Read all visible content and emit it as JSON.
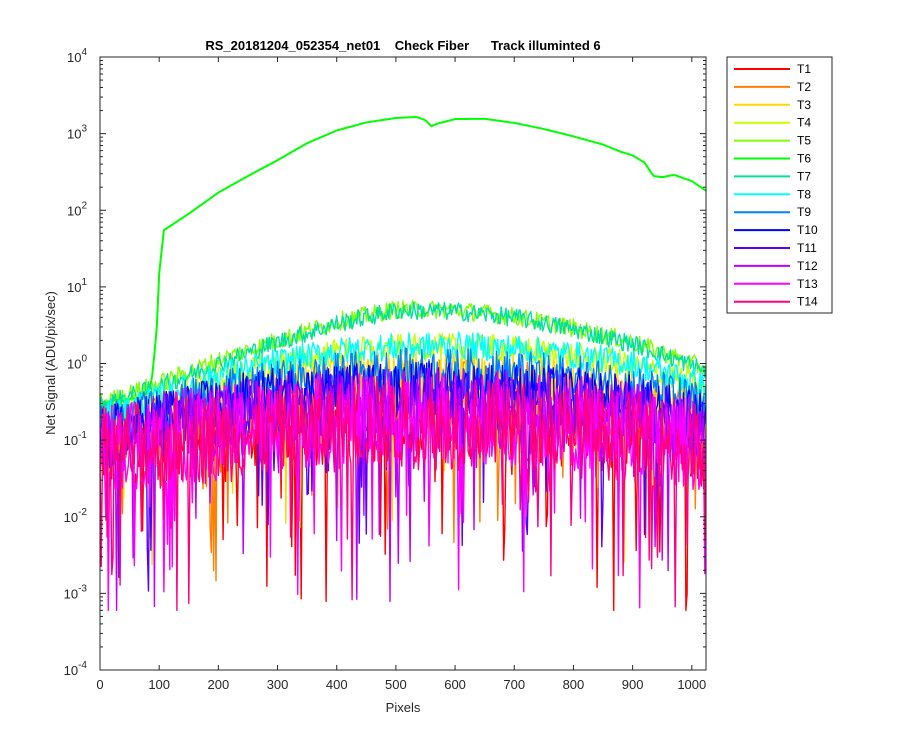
{
  "chart_data": {
    "type": "line",
    "title": "RS_20181204_052354_net01    Check Fiber      Track illuminted 6",
    "xlabel": "Pixels",
    "ylabel": "Net Signal (ADU/pix/sec)",
    "xlim": [
      0,
      1024
    ],
    "ylim": [
      0.0001,
      10000
    ],
    "yscale": "log",
    "x_ticks": [
      0,
      100,
      200,
      300,
      400,
      500,
      600,
      700,
      800,
      900,
      1000
    ],
    "y_ticks": [
      {
        "value": 0.0001,
        "base": "10",
        "exp": "-4"
      },
      {
        "value": 0.001,
        "base": "10",
        "exp": "-3"
      },
      {
        "value": 0.01,
        "base": "10",
        "exp": "-2"
      },
      {
        "value": 0.1,
        "base": "10",
        "exp": "-1"
      },
      {
        "value": 1,
        "base": "10",
        "exp": "0"
      },
      {
        "value": 10,
        "base": "10",
        "exp": "1"
      },
      {
        "value": 100,
        "base": "10",
        "exp": "2"
      },
      {
        "value": 1000,
        "base": "10",
        "exp": "3"
      },
      {
        "value": 10000,
        "base": "10",
        "exp": "4"
      }
    ],
    "grid": false,
    "legend_position": "outside-right-top",
    "series": [
      {
        "name": "T1",
        "color": "#ff0000",
        "points": [
          [
            0,
            0.08
          ],
          [
            100,
            0.1
          ],
          [
            200,
            0.13
          ],
          [
            300,
            0.15
          ],
          [
            400,
            0.17
          ],
          [
            500,
            0.18
          ],
          [
            600,
            0.18
          ],
          [
            700,
            0.17
          ],
          [
            800,
            0.15
          ],
          [
            900,
            0.12
          ],
          [
            1000,
            0.09
          ],
          [
            1024,
            0.08
          ]
        ]
      },
      {
        "name": "T2",
        "color": "#ff7f00",
        "points": [
          [
            0,
            0.12
          ],
          [
            100,
            0.17
          ],
          [
            200,
            0.23
          ],
          [
            300,
            0.3
          ],
          [
            400,
            0.38
          ],
          [
            500,
            0.42
          ],
          [
            600,
            0.42
          ],
          [
            700,
            0.4
          ],
          [
            800,
            0.33
          ],
          [
            900,
            0.25
          ],
          [
            1000,
            0.16
          ],
          [
            1024,
            0.14
          ]
        ]
      },
      {
        "name": "T3",
        "color": "#ffd700",
        "points": [
          [
            0,
            0.13
          ],
          [
            100,
            0.2
          ],
          [
            200,
            0.32
          ],
          [
            300,
            0.45
          ],
          [
            400,
            0.55
          ],
          [
            500,
            0.6
          ],
          [
            600,
            0.6
          ],
          [
            700,
            0.58
          ],
          [
            800,
            0.5
          ],
          [
            900,
            0.38
          ],
          [
            1000,
            0.22
          ],
          [
            1024,
            0.19
          ]
        ]
      },
      {
        "name": "T4",
        "color": "#c8ff00",
        "points": [
          [
            0,
            0.2
          ],
          [
            100,
            0.35
          ],
          [
            200,
            0.65
          ],
          [
            300,
            1.0
          ],
          [
            400,
            1.4
          ],
          [
            500,
            1.6
          ],
          [
            600,
            1.65
          ],
          [
            700,
            1.55
          ],
          [
            800,
            1.25
          ],
          [
            900,
            0.95
          ],
          [
            1000,
            0.55
          ],
          [
            1024,
            0.45
          ]
        ]
      },
      {
        "name": "T5",
        "color": "#80ff00",
        "points": [
          [
            0,
            0.3
          ],
          [
            100,
            0.55
          ],
          [
            200,
            1.1
          ],
          [
            300,
            2.0
          ],
          [
            400,
            3.5
          ],
          [
            500,
            5.1
          ],
          [
            600,
            5.0
          ],
          [
            700,
            4.1
          ],
          [
            800,
            2.9
          ],
          [
            900,
            1.9
          ],
          [
            1000,
            1.0
          ],
          [
            1024,
            0.85
          ]
        ]
      },
      {
        "name": "T6",
        "color": "#00ff00",
        "points": [
          [
            0,
            0.3
          ],
          [
            60,
            0.35
          ],
          [
            85,
            0.45
          ],
          [
            95,
            2
          ],
          [
            100,
            15
          ],
          [
            108,
            55
          ],
          [
            150,
            90
          ],
          [
            200,
            170
          ],
          [
            250,
            280
          ],
          [
            300,
            450
          ],
          [
            350,
            750
          ],
          [
            400,
            1100
          ],
          [
            450,
            1400
          ],
          [
            500,
            1600
          ],
          [
            535,
            1650
          ],
          [
            550,
            1500
          ],
          [
            560,
            1250
          ],
          [
            570,
            1350
          ],
          [
            600,
            1550
          ],
          [
            650,
            1560
          ],
          [
            700,
            1380
          ],
          [
            750,
            1150
          ],
          [
            800,
            920
          ],
          [
            850,
            720
          ],
          [
            880,
            580
          ],
          [
            900,
            520
          ],
          [
            920,
            420
          ],
          [
            935,
            280
          ],
          [
            950,
            270
          ],
          [
            970,
            290
          ],
          [
            1000,
            240
          ],
          [
            1024,
            180
          ]
        ]
      },
      {
        "name": "T7",
        "color": "#00e0a0",
        "points": [
          [
            0,
            0.28
          ],
          [
            100,
            0.5
          ],
          [
            200,
            1.0
          ],
          [
            300,
            1.9
          ],
          [
            400,
            3.3
          ],
          [
            500,
            4.9
          ],
          [
            600,
            4.8
          ],
          [
            700,
            4.0
          ],
          [
            800,
            2.8
          ],
          [
            900,
            1.8
          ],
          [
            1000,
            0.95
          ],
          [
            1024,
            0.8
          ]
        ]
      },
      {
        "name": "T8",
        "color": "#00ffff",
        "points": [
          [
            0,
            0.2
          ],
          [
            100,
            0.36
          ],
          [
            200,
            0.7
          ],
          [
            300,
            1.05
          ],
          [
            400,
            1.45
          ],
          [
            500,
            1.65
          ],
          [
            600,
            1.7
          ],
          [
            700,
            1.6
          ],
          [
            800,
            1.3
          ],
          [
            900,
            1.0
          ],
          [
            1000,
            0.6
          ],
          [
            1024,
            0.5
          ]
        ]
      },
      {
        "name": "T9",
        "color": "#0080ff",
        "points": [
          [
            0,
            0.15
          ],
          [
            100,
            0.25
          ],
          [
            200,
            0.4
          ],
          [
            300,
            0.55
          ],
          [
            400,
            0.7
          ],
          [
            500,
            0.8
          ],
          [
            600,
            0.8
          ],
          [
            700,
            0.75
          ],
          [
            800,
            0.65
          ],
          [
            900,
            0.5
          ],
          [
            1000,
            0.32
          ],
          [
            1024,
            0.28
          ]
        ]
      },
      {
        "name": "T10",
        "color": "#0000ff",
        "points": [
          [
            0,
            0.12
          ],
          [
            100,
            0.2
          ],
          [
            200,
            0.3
          ],
          [
            300,
            0.4
          ],
          [
            400,
            0.45
          ],
          [
            500,
            0.48
          ],
          [
            600,
            0.48
          ],
          [
            700,
            0.46
          ],
          [
            800,
            0.4
          ],
          [
            900,
            0.32
          ],
          [
            1000,
            0.2
          ],
          [
            1024,
            0.18
          ]
        ]
      },
      {
        "name": "T11",
        "color": "#5500ff",
        "points": [
          [
            0,
            0.1
          ],
          [
            100,
            0.15
          ],
          [
            200,
            0.22
          ],
          [
            300,
            0.28
          ],
          [
            400,
            0.32
          ],
          [
            500,
            0.34
          ],
          [
            600,
            0.34
          ],
          [
            700,
            0.32
          ],
          [
            800,
            0.28
          ],
          [
            900,
            0.22
          ],
          [
            1000,
            0.14
          ],
          [
            1024,
            0.12
          ]
        ]
      },
      {
        "name": "T12",
        "color": "#bf00ff",
        "points": [
          [
            0,
            0.09
          ],
          [
            100,
            0.12
          ],
          [
            200,
            0.16
          ],
          [
            300,
            0.2
          ],
          [
            400,
            0.23
          ],
          [
            500,
            0.25
          ],
          [
            600,
            0.25
          ],
          [
            700,
            0.23
          ],
          [
            800,
            0.2
          ],
          [
            900,
            0.16
          ],
          [
            1000,
            0.11
          ],
          [
            1024,
            0.1
          ]
        ]
      },
      {
        "name": "T13",
        "color": "#ff00ff",
        "points": [
          [
            0,
            0.08
          ],
          [
            100,
            0.1
          ],
          [
            200,
            0.13
          ],
          [
            300,
            0.16
          ],
          [
            400,
            0.18
          ],
          [
            500,
            0.19
          ],
          [
            600,
            0.19
          ],
          [
            700,
            0.18
          ],
          [
            800,
            0.16
          ],
          [
            900,
            0.13
          ],
          [
            1000,
            0.09
          ],
          [
            1024,
            0.08
          ]
        ]
      },
      {
        "name": "T14",
        "color": "#ff0080",
        "points": [
          [
            0,
            0.07
          ],
          [
            100,
            0.09
          ],
          [
            200,
            0.11
          ],
          [
            300,
            0.13
          ],
          [
            400,
            0.15
          ],
          [
            500,
            0.16
          ],
          [
            600,
            0.16
          ],
          [
            700,
            0.15
          ],
          [
            800,
            0.13
          ],
          [
            900,
            0.11
          ],
          [
            1000,
            0.08
          ],
          [
            1024,
            0.07
          ]
        ]
      }
    ]
  }
}
